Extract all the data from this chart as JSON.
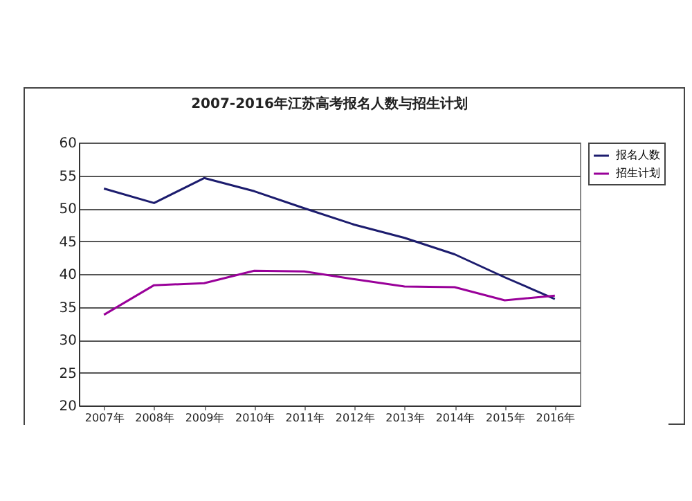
{
  "chart_data": {
    "type": "line",
    "title": "2007-2016年江苏高考报名人数与招生计划",
    "categories": [
      "2007年",
      "2008年",
      "2009年",
      "2010年",
      "2011年",
      "2012年",
      "2013年",
      "2014年",
      "2015年",
      "2016年"
    ],
    "series": [
      {
        "name": "报名人数",
        "color": "#1c1c6e",
        "values": [
          53,
          50.8,
          54.6,
          52.6,
          50,
          47.5,
          45.5,
          43,
          39.5,
          36.2
        ]
      },
      {
        "name": "招生计划",
        "color": "#990099",
        "values": [
          33.8,
          38.3,
          38.6,
          40.5,
          40.4,
          39.2,
          38.1,
          38,
          36,
          36.7
        ]
      }
    ],
    "ylim": [
      20,
      60
    ],
    "yticks": [
      20,
      25,
      30,
      35,
      40,
      45,
      50,
      55,
      60
    ],
    "grid": "y",
    "legend": "right",
    "marker": "none",
    "line_style": "solid"
  }
}
